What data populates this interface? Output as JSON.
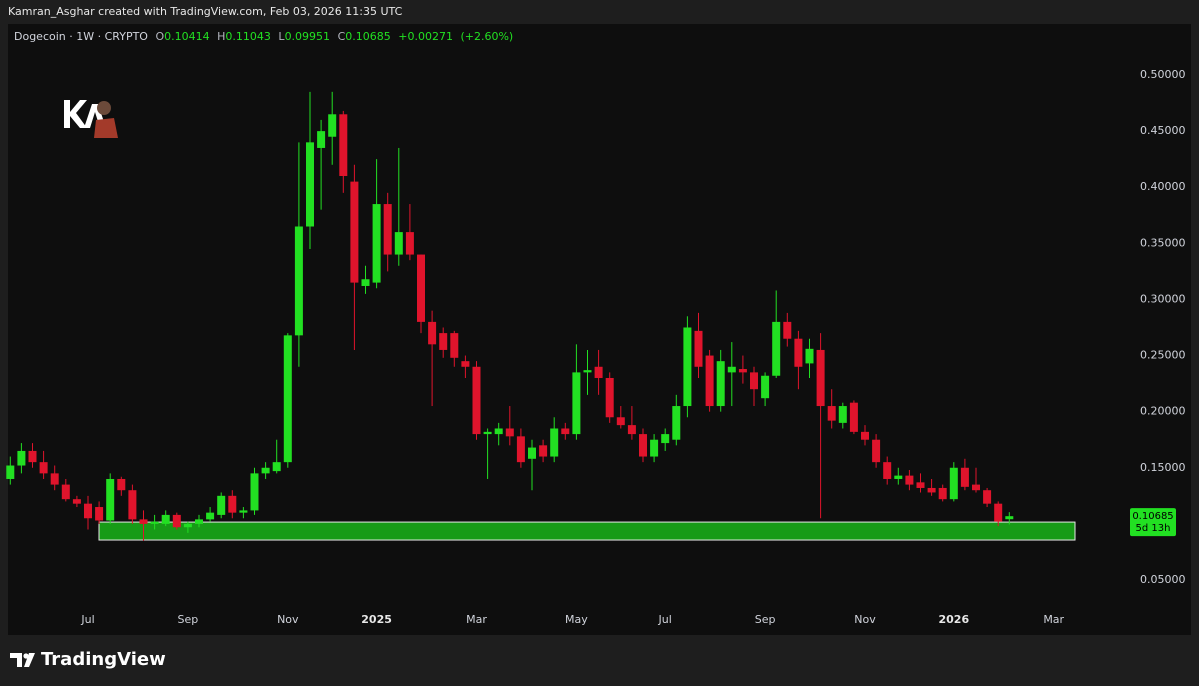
{
  "header": {
    "text": "Kamran_Asghar created with TradingView.com, Feb 03, 2026 11:35 UTC"
  },
  "footer": {
    "brand": "TradingView"
  },
  "chart_data": {
    "type": "candlestick",
    "title": "Dogecoin · 1W · CRYPTO",
    "ohlc_labels": [
      "O",
      "H",
      "L",
      "C"
    ],
    "change": "+0.00271",
    "change_percent": "(+2.60%)",
    "countdown": "5d 13h",
    "up_color": "#22e022",
    "down_color": "#e0142c",
    "categories": [
      null,
      null,
      null,
      null,
      null,
      null,
      null,
      "Jul",
      null,
      null,
      null,
      null,
      null,
      null,
      null,
      null,
      "Sep",
      null,
      null,
      null,
      null,
      null,
      null,
      null,
      null,
      "Nov",
      null,
      null,
      null,
      null,
      null,
      null,
      null,
      "2025",
      null,
      null,
      null,
      null,
      null,
      null,
      null,
      null,
      "Mar",
      null,
      null,
      null,
      null,
      null,
      null,
      null,
      null,
      "May",
      null,
      null,
      null,
      null,
      null,
      null,
      null,
      "Jul",
      null,
      null,
      null,
      null,
      null,
      null,
      null,
      null,
      "Sep",
      null,
      null,
      null,
      null,
      null,
      null,
      null,
      null,
      "Nov",
      null,
      null,
      null,
      null,
      null,
      null,
      null,
      "2026",
      null,
      null,
      null,
      null,
      null,
      null,
      null,
      null,
      "Mar"
    ],
    "open": [
      0.14,
      0.152,
      0.165,
      0.155,
      0.145,
      0.135,
      0.122,
      0.118,
      0.115,
      0.103,
      0.14,
      0.13,
      0.104,
      0.1,
      0.1,
      0.108,
      0.097,
      0.1,
      0.104,
      0.108,
      0.125,
      0.11,
      0.112,
      0.145,
      0.147,
      0.155,
      0.268,
      0.365,
      0.435,
      0.445,
      0.465,
      0.405,
      0.312,
      0.315,
      0.385,
      0.34,
      0.36,
      0.34,
      0.28,
      0.27,
      0.27,
      0.245,
      0.24,
      0.18,
      0.18,
      0.185,
      0.178,
      0.158,
      0.17,
      0.16,
      0.185,
      0.18,
      0.235,
      0.24,
      0.23,
      0.195,
      0.188,
      0.18,
      0.16,
      0.172,
      0.175,
      0.205,
      0.272,
      0.25,
      0.205,
      0.235,
      0.238,
      0.235,
      0.212,
      0.232,
      0.28,
      0.265,
      0.243,
      0.255,
      0.205,
      0.19,
      0.208,
      0.182,
      0.175,
      0.155,
      0.14,
      0.143,
      0.137,
      0.132,
      0.132,
      0.122,
      0.15,
      0.135,
      0.13,
      0.118,
      0.10414,
      null,
      null,
      null,
      null
    ],
    "high": [
      0.16,
      0.172,
      0.172,
      0.165,
      0.152,
      0.14,
      0.125,
      0.125,
      0.12,
      0.145,
      0.142,
      0.135,
      0.112,
      0.108,
      0.112,
      0.11,
      0.102,
      0.108,
      0.115,
      0.128,
      0.13,
      0.115,
      0.15,
      0.155,
      0.175,
      0.27,
      0.44,
      0.485,
      0.46,
      0.485,
      0.468,
      0.42,
      0.33,
      0.425,
      0.395,
      0.435,
      0.385,
      0.34,
      0.29,
      0.275,
      0.272,
      0.25,
      0.245,
      0.185,
      0.19,
      0.205,
      0.185,
      0.175,
      0.175,
      0.195,
      0.19,
      0.26,
      0.255,
      0.255,
      0.235,
      0.205,
      0.205,
      0.185,
      0.18,
      0.185,
      0.215,
      0.285,
      0.288,
      0.255,
      0.255,
      0.262,
      0.25,
      0.24,
      0.235,
      0.308,
      0.288,
      0.272,
      0.265,
      0.27,
      0.22,
      0.208,
      0.21,
      0.188,
      0.18,
      0.16,
      0.15,
      0.148,
      0.145,
      0.14,
      0.135,
      0.155,
      0.158,
      0.15,
      0.132,
      0.12,
      0.11043,
      null,
      null,
      null,
      null
    ],
    "low": [
      0.135,
      0.145,
      0.15,
      0.14,
      0.13,
      0.12,
      0.115,
      0.095,
      0.1,
      0.1,
      0.125,
      0.1,
      0.085,
      0.095,
      0.098,
      0.095,
      0.092,
      0.097,
      0.102,
      0.105,
      0.105,
      0.105,
      0.108,
      0.14,
      0.145,
      0.15,
      0.24,
      0.345,
      0.38,
      0.42,
      0.395,
      0.255,
      0.305,
      0.31,
      0.325,
      0.33,
      0.335,
      0.27,
      0.205,
      0.248,
      0.24,
      0.23,
      0.175,
      0.14,
      0.17,
      0.17,
      0.15,
      0.13,
      0.155,
      0.155,
      0.175,
      0.175,
      0.215,
      0.215,
      0.19,
      0.185,
      0.175,
      0.155,
      0.155,
      0.165,
      0.17,
      0.195,
      0.23,
      0.2,
      0.2,
      0.205,
      0.225,
      0.205,
      0.205,
      0.23,
      0.258,
      0.22,
      0.23,
      0.105,
      0.185,
      0.185,
      0.18,
      0.17,
      0.15,
      0.135,
      0.135,
      0.13,
      0.128,
      0.125,
      0.12,
      0.12,
      0.13,
      0.128,
      0.115,
      0.098,
      0.09951,
      null,
      null,
      null,
      null
    ],
    "close": [
      0.152,
      0.165,
      0.155,
      0.145,
      0.135,
      0.122,
      0.118,
      0.105,
      0.103,
      0.14,
      0.13,
      0.104,
      0.1,
      0.102,
      0.108,
      0.097,
      0.1,
      0.104,
      0.11,
      0.125,
      0.11,
      0.112,
      0.145,
      0.15,
      0.155,
      0.268,
      0.365,
      0.44,
      0.45,
      0.465,
      0.41,
      0.315,
      0.318,
      0.385,
      0.34,
      0.36,
      0.34,
      0.28,
      0.26,
      0.255,
      0.248,
      0.24,
      0.18,
      0.182,
      0.185,
      0.178,
      0.155,
      0.168,
      0.16,
      0.185,
      0.18,
      0.235,
      0.237,
      0.23,
      0.195,
      0.188,
      0.18,
      0.16,
      0.175,
      0.18,
      0.205,
      0.275,
      0.24,
      0.205,
      0.245,
      0.24,
      0.235,
      0.22,
      0.232,
      0.28,
      0.265,
      0.24,
      0.256,
      0.205,
      0.192,
      0.205,
      0.182,
      0.175,
      0.155,
      0.14,
      0.143,
      0.135,
      0.132,
      0.128,
      0.122,
      0.15,
      0.133,
      0.13,
      0.118,
      0.102,
      0.10685,
      null,
      null,
      null,
      null
    ],
    "ylim": [
      0.0277,
      0.5419
    ],
    "yticks": [
      {
        "value": 0.5,
        "label": "0.50000"
      },
      {
        "value": 0.45,
        "label": "0.45000"
      },
      {
        "value": 0.4,
        "label": "0.40000"
      },
      {
        "value": 0.35,
        "label": "0.35000"
      },
      {
        "value": 0.3,
        "label": "0.30000"
      },
      {
        "value": 0.25,
        "label": "0.25000"
      },
      {
        "value": 0.2,
        "label": "0.20000"
      },
      {
        "value": 0.15,
        "label": "0.15000"
      },
      {
        "value": 0.05,
        "label": "0.05000"
      }
    ],
    "zone": {
      "top": 0.1016,
      "bottom": 0.0856,
      "color": "#179b17"
    }
  }
}
